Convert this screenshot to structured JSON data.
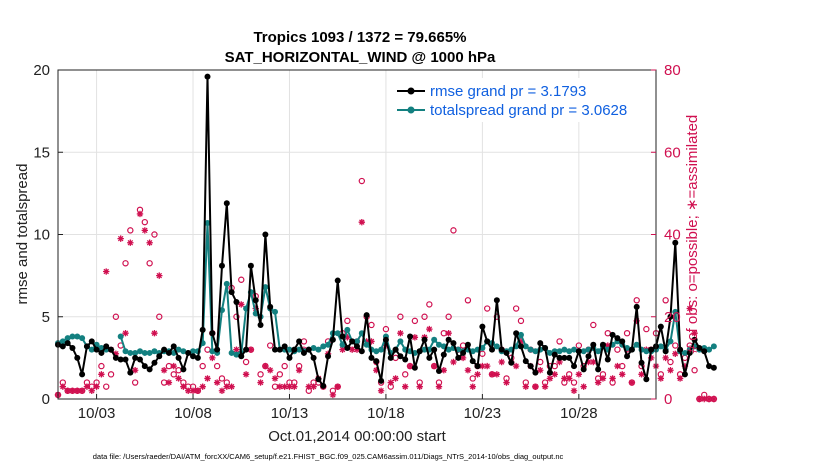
{
  "chart_data": {
    "type": "line",
    "title": "Tropics 1093 / 1372 = 79.665%",
    "subtitle": "SAT_HORIZONTAL_WIND @ 1000 hPa",
    "xlabel": "Oct.01,2014 00:00:00 start",
    "ylabel": "rmse and totalspread",
    "ylabel_right": "# of obs: o=possible; ∗=assimilated",
    "ylim": [
      0,
      20
    ],
    "ylim_right": [
      0,
      80
    ],
    "yticks": [
      "0",
      "5",
      "10",
      "15",
      "20"
    ],
    "yticks_right": [
      "0",
      "20",
      "40",
      "60",
      "80"
    ],
    "xlim": [
      1.0,
      32.0
    ],
    "xticks": [
      {
        "x": 3,
        "label": "10/03"
      },
      {
        "x": 8,
        "label": "10/08"
      },
      {
        "x": 13,
        "label": "10/13"
      },
      {
        "x": 18,
        "label": "10/18"
      },
      {
        "x": 23,
        "label": "10/23"
      },
      {
        "x": 28,
        "label": "10/28"
      }
    ],
    "grid": true,
    "legend_position": "top-right",
    "series": [
      {
        "name": "rmse grand pr = 3.1793",
        "color": "#000000",
        "axis": "left",
        "values": [
          3.3,
          3.2,
          3.4,
          3.1,
          2.5,
          1.5,
          3.2,
          3.5,
          3.0,
          2.8,
          3.2,
          3.0,
          2.5,
          2.4,
          2.4,
          1.6,
          2.5,
          2.4,
          2.0,
          1.8,
          2.2,
          2.6,
          3.0,
          2.8,
          3.2,
          2.5,
          1.8,
          2.8,
          2.6,
          2.5,
          4.2,
          19.6,
          4.0,
          3.0,
          8.1,
          11.9,
          6.5,
          5.9,
          2.6,
          3.0,
          8.1,
          6.0,
          4.5,
          10.0,
          5.6,
          3.0,
          3.0,
          3.2,
          2.5,
          3.0,
          3.5,
          2.8,
          3.0,
          2.5,
          1.2,
          0.8,
          2.6,
          3.6,
          7.2,
          3.8,
          3.1,
          3.5,
          3.2,
          2.9,
          5.1,
          2.5,
          2.3,
          1.1,
          3.6,
          2.5,
          3.0,
          2.6,
          2.4,
          3.8,
          1.9,
          2.9,
          3.6,
          2.5,
          3.0,
          1.7,
          2.7,
          3.6,
          3.4,
          2.5,
          2.8,
          3.3,
          2.3,
          2.0,
          4.4,
          3.5,
          3.0,
          6.0,
          3.0,
          2.8,
          2.2,
          4.0,
          3.2,
          2.3,
          2.0,
          1.6,
          3.4,
          3.1,
          1.6,
          2.7,
          2.5,
          2.5,
          2.5,
          2.0,
          2.9,
          1.8,
          2.6,
          3.3,
          1.8,
          3.3,
          2.4,
          3.9,
          3.7,
          3.5,
          2.6,
          3.0,
          5.6,
          2.2,
          1.2,
          3.0,
          3.2,
          4.4,
          2.9,
          5.0,
          9.5,
          3.0,
          1.5,
          2.8,
          3.6,
          3.1,
          2.9,
          2.0,
          1.9
        ]
      },
      {
        "name": "totalspread grand pr = 3.0628",
        "color": "#138080",
        "axis": "left",
        "values": [
          3.4,
          3.5,
          3.7,
          3.8,
          3.8,
          3.7,
          3.2,
          3.0,
          3.3,
          3.1,
          3.0,
          null,
          null,
          3.8,
          2.9,
          2.8,
          2.8,
          2.9,
          2.8,
          2.8,
          2.9,
          2.8,
          2.9,
          2.9,
          2.8,
          3.0,
          2.9,
          2.8,
          2.9,
          2.9,
          3.4,
          10.7,
          2.9,
          2.8,
          5.4,
          7.0,
          2.8,
          2.7,
          2.8,
          5.5,
          6.5,
          5.2,
          5.0,
          6.8,
          5.5,
          5.3,
          3.0,
          3.0,
          3.0,
          2.9,
          3.0,
          2.9,
          3.0,
          3.1,
          3.0,
          3.2,
          3.3,
          4.0,
          4.0,
          3.3,
          4.2,
          3.5,
          3.5,
          4.0,
          3.3,
          3.0,
          2.9,
          3.0,
          3.8,
          2.8,
          3.0,
          3.5,
          3.0,
          2.9,
          2.8,
          2.9,
          3.0,
          3.0,
          3.6,
          3.3,
          3.2,
          3.0,
          3.1,
          3.0,
          2.9,
          3.0,
          2.9,
          3.0,
          3.1,
          3.5,
          3.4,
          3.2,
          2.9,
          2.9,
          3.0,
          3.2,
          3.9,
          3.2,
          3.0,
          2.9,
          3.0,
          3.1,
          2.8,
          2.9,
          2.9,
          3.0,
          2.9,
          3.0,
          2.9,
          2.9,
          3.0,
          3.1,
          2.9,
          3.2,
          3.0,
          3.3,
          3.5,
          3.3,
          3.1,
          3.0,
          3.3,
          3.0,
          2.9,
          2.9,
          3.0,
          3.2,
          3.0,
          3.5,
          5.3,
          2.9,
          2.8,
          3.0,
          3.2,
          3.0,
          3.1,
          3.0,
          3.2
        ]
      },
      {
        "name": "possible",
        "color": "#d01050",
        "axis": "right",
        "marker": "o",
        "values": [
          1,
          4,
          2,
          2,
          2,
          2,
          4,
          3,
          4,
          8,
          3,
          6,
          20,
          13,
          33,
          41,
          4,
          46,
          43,
          33,
          40,
          20,
          4,
          8,
          6,
          7,
          4,
          3,
          3,
          2,
          8,
          12,
          16,
          8,
          5,
          4,
          27,
          20,
          29,
          9,
          12,
          25,
          6,
          8,
          13,
          3,
          6,
          8,
          4,
          4,
          8,
          14,
          2,
          4,
          4,
          3,
          14,
          2,
          3,
          16,
          19,
          13,
          14,
          53,
          20,
          18,
          9,
          4,
          17,
          3,
          10,
          20,
          6,
          8,
          19,
          4,
          20,
          23,
          8,
          4,
          16,
          20,
          41,
          12,
          13,
          24,
          5,
          8,
          11,
          22,
          6,
          20,
          12,
          5,
          10,
          22,
          19,
          4,
          12,
          3,
          9,
          4,
          8,
          8,
          14,
          4,
          6,
          4,
          13,
          8,
          12,
          18,
          5,
          6,
          16,
          4,
          12,
          8,
          16,
          4,
          24,
          8,
          17,
          12,
          16,
          6,
          24,
          9,
          13,
          6,
          10,
          13,
          7,
          0,
          1,
          0,
          0
        ]
      },
      {
        "name": "assimilated",
        "color": "#d01050",
        "axis": "right",
        "marker": "*",
        "values": [
          1,
          3,
          2,
          2,
          2,
          2,
          3,
          2,
          3,
          6,
          31,
          12,
          11,
          39,
          16,
          38,
          7,
          45,
          41,
          38,
          16,
          30,
          7,
          4,
          8,
          5,
          3,
          2,
          2,
          2,
          3,
          5,
          10,
          4,
          2,
          3,
          3,
          12,
          23,
          6,
          12,
          22,
          4,
          8,
          7,
          5,
          3,
          3,
          3,
          3,
          7,
          12,
          3,
          3,
          5,
          3,
          11,
          1,
          3,
          12,
          15,
          12,
          12,
          43,
          14,
          14,
          7,
          2,
          13,
          4,
          5,
          16,
          3,
          8,
          15,
          3,
          15,
          17,
          8,
          3,
          7,
          16,
          9,
          12,
          10,
          7,
          3,
          6,
          8,
          8,
          6,
          6,
          9,
          4,
          9,
          8,
          14,
          3,
          8,
          3,
          7,
          3,
          5,
          6,
          9,
          5,
          5,
          2,
          6,
          3,
          9,
          9,
          4,
          5,
          13,
          5,
          8,
          6,
          12,
          4,
          19,
          6,
          12,
          10,
          8,
          5,
          10,
          7,
          11,
          5,
          8,
          22,
          16,
          0,
          0,
          0,
          0
        ]
      }
    ]
  },
  "footer": "data file: /Users/raeder/DAI/ATM_forcXX/CAM6_setup/f.e21.FHIST_BGC.f09_025.CAM6assim.011/Diags_NTrS_2014-10/obs_diag_output.nc"
}
